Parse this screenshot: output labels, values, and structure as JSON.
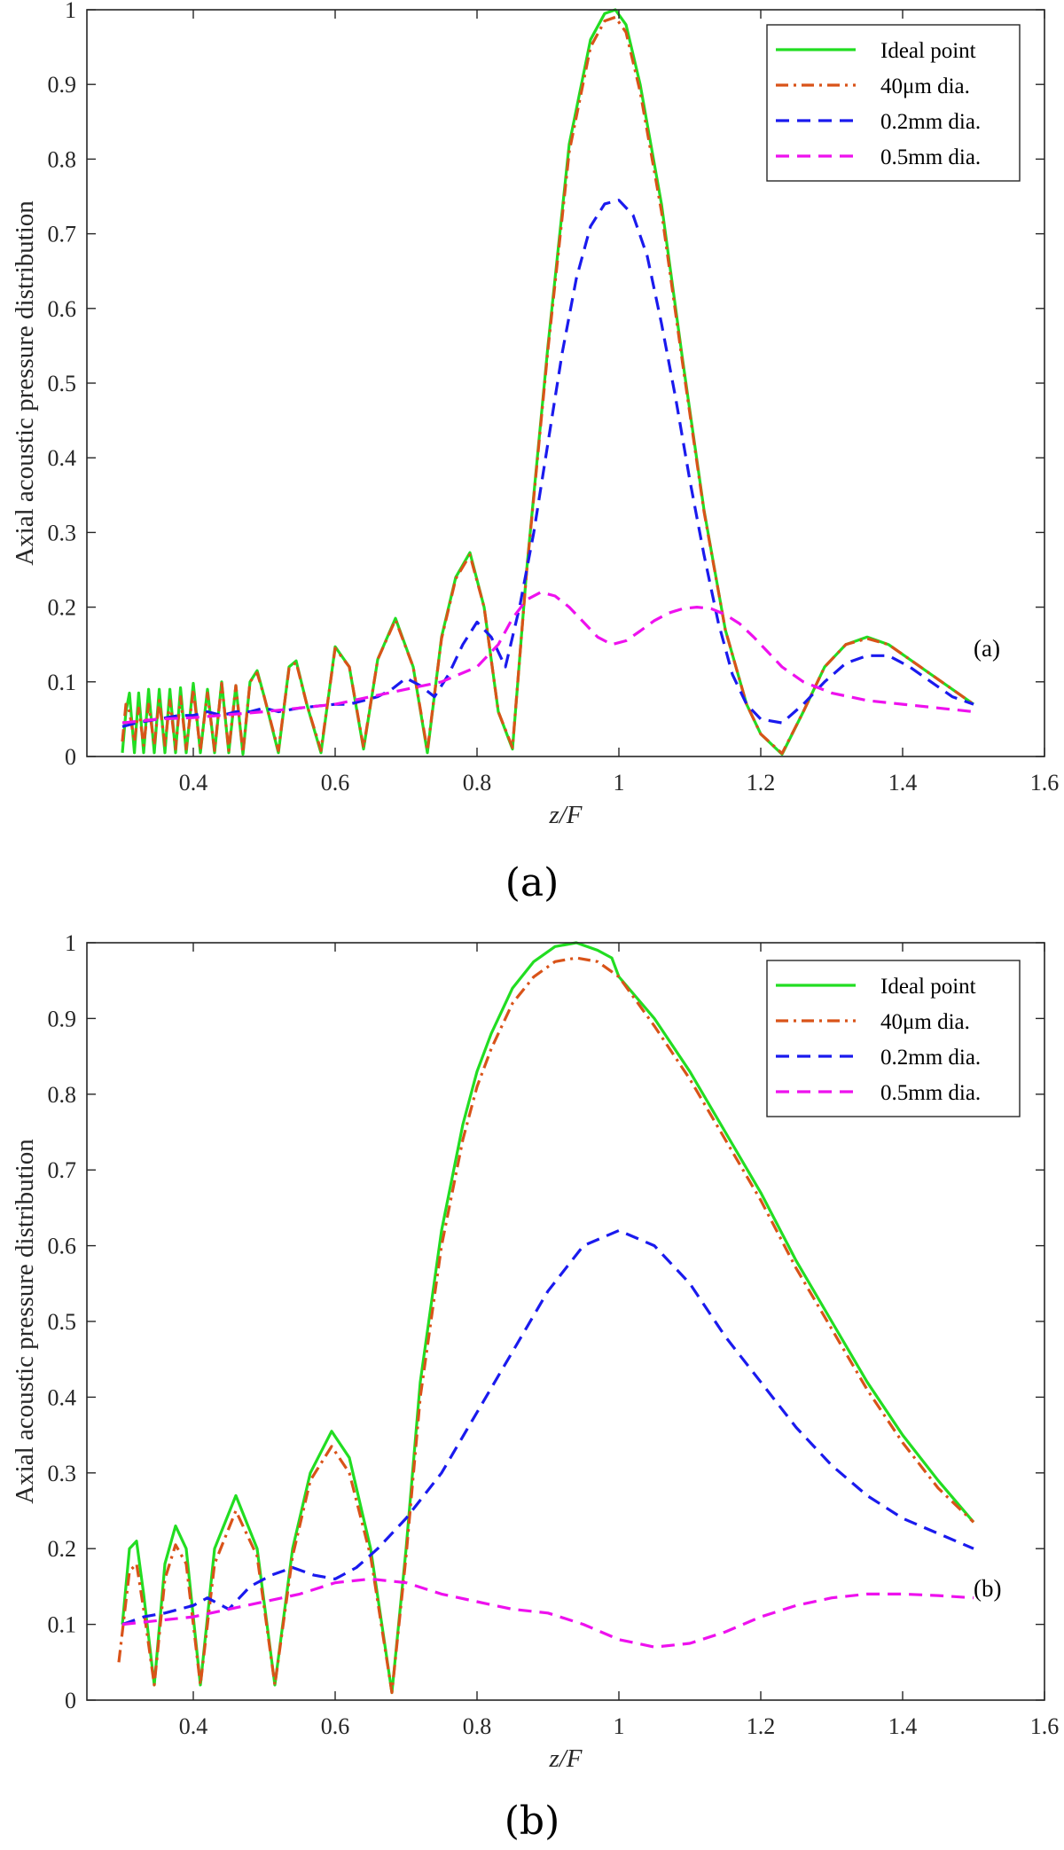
{
  "chart_data": [
    {
      "type": "line",
      "panel_caption": "(a)",
      "annotation": "(a)",
      "xlabel": "z/F",
      "ylabel": "Axial acoustic pressure distribution",
      "xlim": [
        0.25,
        1.6
      ],
      "ylim": [
        0,
        1
      ],
      "xticks": [
        "0.4",
        "0.6",
        "0.8",
        "1",
        "1.2",
        "1.4",
        "1.6"
      ],
      "yticks": [
        "0",
        "0.1",
        "0.2",
        "0.3",
        "0.4",
        "0.5",
        "0.6",
        "0.7",
        "0.8",
        "0.9",
        "1"
      ],
      "legend_position": "top-right",
      "series": [
        {
          "name": "Ideal point",
          "color": "#22dd22",
          "style": "solid",
          "x": [
            0.3,
            0.305,
            0.31,
            0.317,
            0.323,
            0.33,
            0.337,
            0.345,
            0.352,
            0.36,
            0.367,
            0.375,
            0.382,
            0.39,
            0.4,
            0.41,
            0.42,
            0.43,
            0.44,
            0.45,
            0.46,
            0.47,
            0.48,
            0.49,
            0.5,
            0.52,
            0.535,
            0.545,
            0.56,
            0.58,
            0.6,
            0.62,
            0.64,
            0.66,
            0.685,
            0.71,
            0.73,
            0.75,
            0.77,
            0.79,
            0.81,
            0.83,
            0.85,
            0.87,
            0.9,
            0.93,
            0.96,
            0.98,
            0.995,
            1.01,
            1.03,
            1.06,
            1.09,
            1.12,
            1.15,
            1.18,
            1.2,
            1.23,
            1.26,
            1.29,
            1.32,
            1.35,
            1.38,
            1.41,
            1.44,
            1.47,
            1.5
          ],
          "y": [
            0.005,
            0.06,
            0.085,
            0.005,
            0.085,
            0.005,
            0.09,
            0.005,
            0.09,
            0.005,
            0.09,
            0.005,
            0.092,
            0.005,
            0.098,
            0.005,
            0.09,
            0.005,
            0.1,
            0.005,
            0.095,
            0.003,
            0.1,
            0.115,
            0.08,
            0.005,
            0.12,
            0.128,
            0.07,
            0.005,
            0.147,
            0.12,
            0.01,
            0.13,
            0.185,
            0.12,
            0.005,
            0.16,
            0.24,
            0.273,
            0.2,
            0.06,
            0.01,
            0.25,
            0.55,
            0.82,
            0.96,
            0.995,
            1.0,
            0.98,
            0.9,
            0.74,
            0.53,
            0.33,
            0.17,
            0.07,
            0.03,
            0.003,
            0.06,
            0.12,
            0.15,
            0.16,
            0.15,
            0.13,
            0.11,
            0.09,
            0.07
          ]
        },
        {
          "name": "40μm dia.",
          "color": "#d95319",
          "style": "dashdot",
          "x": [
            0.3,
            0.305,
            0.31,
            0.317,
            0.323,
            0.33,
            0.337,
            0.345,
            0.352,
            0.36,
            0.367,
            0.375,
            0.382,
            0.39,
            0.4,
            0.41,
            0.42,
            0.43,
            0.44,
            0.45,
            0.46,
            0.47,
            0.48,
            0.49,
            0.5,
            0.52,
            0.535,
            0.545,
            0.56,
            0.58,
            0.6,
            0.62,
            0.64,
            0.66,
            0.685,
            0.71,
            0.73,
            0.75,
            0.77,
            0.79,
            0.81,
            0.83,
            0.85,
            0.87,
            0.9,
            0.93,
            0.96,
            0.98,
            0.995,
            1.01,
            1.03,
            1.06,
            1.09,
            1.12,
            1.15,
            1.18,
            1.2,
            1.23,
            1.26,
            1.29,
            1.32,
            1.35,
            1.38,
            1.41,
            1.44,
            1.47,
            1.5
          ],
          "y": [
            0.02,
            0.07,
            0.06,
            0.02,
            0.065,
            0.015,
            0.07,
            0.015,
            0.075,
            0.015,
            0.075,
            0.01,
            0.08,
            0.01,
            0.09,
            0.008,
            0.085,
            0.008,
            0.098,
            0.008,
            0.095,
            0.005,
            0.1,
            0.112,
            0.08,
            0.008,
            0.118,
            0.126,
            0.07,
            0.008,
            0.145,
            0.12,
            0.012,
            0.13,
            0.183,
            0.12,
            0.008,
            0.158,
            0.238,
            0.27,
            0.2,
            0.06,
            0.012,
            0.248,
            0.545,
            0.81,
            0.95,
            0.985,
            0.99,
            0.97,
            0.89,
            0.73,
            0.525,
            0.328,
            0.17,
            0.07,
            0.03,
            0.004,
            0.06,
            0.12,
            0.15,
            0.158,
            0.15,
            0.13,
            0.11,
            0.09,
            0.07
          ]
        },
        {
          "name": "0.2mm dia.",
          "color": "#1a1aee",
          "style": "dash",
          "x": [
            0.3,
            0.32,
            0.35,
            0.38,
            0.4,
            0.42,
            0.44,
            0.46,
            0.48,
            0.5,
            0.52,
            0.55,
            0.58,
            0.6,
            0.62,
            0.64,
            0.66,
            0.68,
            0.7,
            0.72,
            0.74,
            0.76,
            0.78,
            0.8,
            0.82,
            0.84,
            0.86,
            0.88,
            0.9,
            0.92,
            0.94,
            0.96,
            0.98,
            1.0,
            1.02,
            1.04,
            1.06,
            1.08,
            1.1,
            1.12,
            1.14,
            1.16,
            1.18,
            1.2,
            1.23,
            1.26,
            1.29,
            1.32,
            1.35,
            1.38,
            1.41,
            1.44,
            1.47,
            1.5
          ],
          "y": [
            0.04,
            0.045,
            0.05,
            0.055,
            0.055,
            0.06,
            0.055,
            0.06,
            0.06,
            0.065,
            0.06,
            0.065,
            0.068,
            0.07,
            0.07,
            0.075,
            0.08,
            0.09,
            0.105,
            0.095,
            0.08,
            0.11,
            0.15,
            0.18,
            0.16,
            0.12,
            0.2,
            0.3,
            0.42,
            0.54,
            0.64,
            0.71,
            0.74,
            0.745,
            0.725,
            0.67,
            0.58,
            0.48,
            0.37,
            0.27,
            0.18,
            0.11,
            0.07,
            0.05,
            0.045,
            0.07,
            0.1,
            0.125,
            0.135,
            0.135,
            0.12,
            0.1,
            0.08,
            0.07
          ]
        },
        {
          "name": "0.5mm dia.",
          "color": "#ee11ee",
          "style": "dash",
          "x": [
            0.3,
            0.35,
            0.4,
            0.45,
            0.5,
            0.55,
            0.6,
            0.65,
            0.7,
            0.75,
            0.8,
            0.83,
            0.85,
            0.87,
            0.89,
            0.91,
            0.93,
            0.95,
            0.97,
            0.99,
            1.01,
            1.03,
            1.05,
            1.07,
            1.09,
            1.11,
            1.13,
            1.15,
            1.17,
            1.19,
            1.21,
            1.23,
            1.26,
            1.3,
            1.35,
            1.4,
            1.45,
            1.5
          ],
          "y": [
            0.045,
            0.05,
            0.052,
            0.056,
            0.06,
            0.065,
            0.07,
            0.08,
            0.09,
            0.1,
            0.12,
            0.15,
            0.185,
            0.21,
            0.22,
            0.215,
            0.2,
            0.18,
            0.16,
            0.15,
            0.155,
            0.168,
            0.182,
            0.192,
            0.198,
            0.2,
            0.198,
            0.19,
            0.178,
            0.16,
            0.14,
            0.12,
            0.1,
            0.085,
            0.075,
            0.07,
            0.065,
            0.06
          ]
        }
      ]
    },
    {
      "type": "line",
      "panel_caption": "(b)",
      "annotation": "(b)",
      "xlabel": "z/F",
      "ylabel": "Axial acoustic pressure distribution",
      "xlim": [
        0.25,
        1.6
      ],
      "ylim": [
        0,
        1
      ],
      "xticks": [
        "0.4",
        "0.6",
        "0.8",
        "1",
        "1.2",
        "1.4",
        "1.6"
      ],
      "yticks": [
        "0",
        "0.1",
        "0.2",
        "0.3",
        "0.4",
        "0.5",
        "0.6",
        "0.7",
        "0.8",
        "0.9",
        "1"
      ],
      "legend_position": "top-right",
      "series": [
        {
          "name": "Ideal point",
          "color": "#22dd22",
          "style": "solid",
          "x": [
            0.3,
            0.31,
            0.32,
            0.33,
            0.345,
            0.36,
            0.375,
            0.39,
            0.41,
            0.43,
            0.46,
            0.49,
            0.515,
            0.54,
            0.565,
            0.595,
            0.62,
            0.65,
            0.68,
            0.7,
            0.72,
            0.75,
            0.78,
            0.8,
            0.82,
            0.85,
            0.88,
            0.91,
            0.94,
            0.97,
            0.99,
            1.0,
            1.05,
            1.1,
            1.15,
            1.2,
            1.25,
            1.3,
            1.35,
            1.4,
            1.45,
            1.5
          ],
          "y": [
            0.1,
            0.2,
            0.21,
            0.14,
            0.02,
            0.18,
            0.23,
            0.2,
            0.02,
            0.2,
            0.27,
            0.2,
            0.02,
            0.2,
            0.3,
            0.355,
            0.32,
            0.2,
            0.01,
            0.2,
            0.42,
            0.62,
            0.76,
            0.83,
            0.88,
            0.94,
            0.975,
            0.995,
            1.0,
            0.99,
            0.98,
            0.955,
            0.9,
            0.83,
            0.75,
            0.67,
            0.58,
            0.5,
            0.42,
            0.35,
            0.29,
            0.235
          ]
        },
        {
          "name": "40μm dia.",
          "color": "#d95319",
          "style": "dashdot",
          "x": [
            0.295,
            0.31,
            0.32,
            0.33,
            0.345,
            0.36,
            0.375,
            0.39,
            0.41,
            0.43,
            0.46,
            0.49,
            0.515,
            0.54,
            0.565,
            0.595,
            0.62,
            0.65,
            0.68,
            0.7,
            0.72,
            0.75,
            0.78,
            0.8,
            0.82,
            0.85,
            0.88,
            0.91,
            0.94,
            0.97,
            1.0,
            1.05,
            1.1,
            1.15,
            1.2,
            1.25,
            1.3,
            1.35,
            1.4,
            1.45,
            1.5
          ],
          "y": [
            0.05,
            0.17,
            0.18,
            0.12,
            0.02,
            0.16,
            0.205,
            0.18,
            0.02,
            0.18,
            0.25,
            0.19,
            0.02,
            0.19,
            0.29,
            0.335,
            0.3,
            0.19,
            0.01,
            0.19,
            0.4,
            0.6,
            0.74,
            0.81,
            0.86,
            0.92,
            0.955,
            0.975,
            0.98,
            0.975,
            0.955,
            0.89,
            0.82,
            0.74,
            0.66,
            0.57,
            0.49,
            0.41,
            0.34,
            0.28,
            0.235
          ]
        },
        {
          "name": "0.2mm dia.",
          "color": "#1a1aee",
          "style": "dash",
          "x": [
            0.3,
            0.33,
            0.36,
            0.4,
            0.42,
            0.45,
            0.48,
            0.51,
            0.54,
            0.57,
            0.6,
            0.63,
            0.66,
            0.7,
            0.75,
            0.8,
            0.85,
            0.9,
            0.95,
            1.0,
            1.05,
            1.1,
            1.15,
            1.2,
            1.25,
            1.3,
            1.35,
            1.4,
            1.45,
            1.5
          ],
          "y": [
            0.1,
            0.11,
            0.115,
            0.125,
            0.135,
            0.12,
            0.15,
            0.165,
            0.175,
            0.165,
            0.16,
            0.175,
            0.2,
            0.24,
            0.3,
            0.38,
            0.46,
            0.54,
            0.6,
            0.62,
            0.6,
            0.55,
            0.48,
            0.42,
            0.36,
            0.31,
            0.27,
            0.24,
            0.22,
            0.2
          ]
        },
        {
          "name": "0.5mm dia.",
          "color": "#ee11ee",
          "style": "dash",
          "x": [
            0.3,
            0.35,
            0.4,
            0.45,
            0.5,
            0.55,
            0.6,
            0.65,
            0.7,
            0.75,
            0.8,
            0.85,
            0.9,
            0.95,
            1.0,
            1.05,
            1.1,
            1.15,
            1.2,
            1.25,
            1.3,
            1.35,
            1.4,
            1.45,
            1.5
          ],
          "y": [
            0.1,
            0.105,
            0.11,
            0.12,
            0.13,
            0.14,
            0.155,
            0.16,
            0.155,
            0.14,
            0.13,
            0.12,
            0.115,
            0.1,
            0.08,
            0.07,
            0.075,
            0.09,
            0.11,
            0.125,
            0.135,
            0.14,
            0.14,
            0.138,
            0.135
          ]
        }
      ]
    }
  ]
}
